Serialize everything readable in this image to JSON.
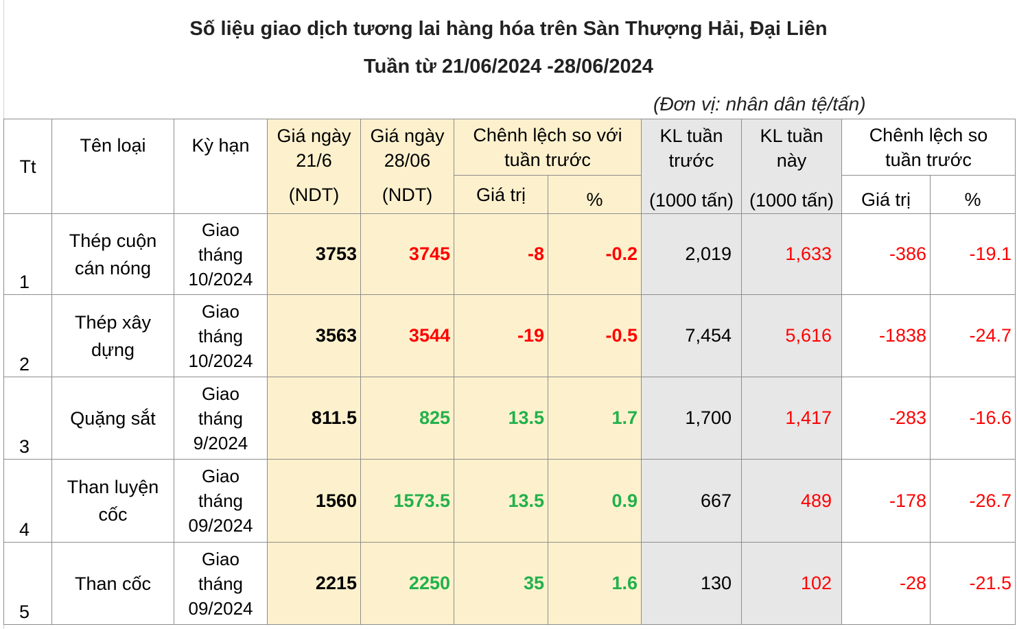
{
  "title": "Số liệu giao dịch tương lai hàng hóa trên Sàn Thượng Hải, Đại Liên",
  "subtitle": "Tuần từ 21/06/2024 -28/06/2024",
  "unit": "(Đơn vị: nhân dân tệ/tấn)",
  "headers": {
    "tt": "Tt",
    "ten_loai": "Tên loại",
    "ky_han": "Kỳ hạn",
    "gia_2106_line1": "Giá ngày",
    "gia_2106_line2": "21/6",
    "gia_2106_unit": "(NDT)",
    "gia_2806_line1": "Giá ngày",
    "gia_2806_line2": "28/06",
    "gia_2806_unit": "(NDT)",
    "chenh_lech_gia_line1": "Chênh lệch so với",
    "chenh_lech_gia_line2": "tuần trước",
    "gia_tri": "Giá trị",
    "pct": "%",
    "kl_truoc_line1": "KL tuần",
    "kl_truoc_line2": "trước",
    "kl_truoc_unit": "(1000 tấn)",
    "kl_nay_line1": "KL tuần",
    "kl_nay_line2": "này",
    "kl_nay_unit": "(1000 tấn)",
    "chenh_lech_kl_line1": "Chênh lệch so",
    "chenh_lech_kl_line2": "tuần trước",
    "gia_tri_2": "Giá trị",
    "pct_2": "%"
  },
  "rows": [
    {
      "tt": "1",
      "name_line1": "Thép cuộn",
      "name_line2": "cán nóng",
      "kyhan_line1": "Giao",
      "kyhan_line2": "tháng",
      "kyhan_line3": "10/2024",
      "gia_2106": "3753",
      "gia_2806": "3745",
      "chenh_gia": "-8",
      "chenh_pct": "-0.2",
      "kl_truoc": "2,019",
      "kl_nay": "1,633",
      "chenh_kl": "-386",
      "chenh_kl_pct": "-19.1"
    },
    {
      "tt": "2",
      "name_line1": "Thép xây",
      "name_line2": "dựng",
      "kyhan_line1": "Giao",
      "kyhan_line2": "tháng",
      "kyhan_line3": "10/2024",
      "gia_2106": "3563",
      "gia_2806": "3544",
      "chenh_gia": "-19",
      "chenh_pct": "-0.5",
      "kl_truoc": "7,454",
      "kl_nay": "5,616",
      "chenh_kl": "-1838",
      "chenh_kl_pct": "-24.7"
    },
    {
      "tt": "3",
      "name_line1": "Quặng sắt",
      "name_line2": "",
      "kyhan_line1": "Giao",
      "kyhan_line2": "tháng",
      "kyhan_line3": "9/2024",
      "gia_2106": "811.5",
      "gia_2806": "825",
      "chenh_gia": "13.5",
      "chenh_pct": "1.7",
      "kl_truoc": "1,700",
      "kl_nay": "1,417",
      "chenh_kl": "-283",
      "chenh_kl_pct": "-16.6"
    },
    {
      "tt": "4",
      "name_line1": "Than luyện",
      "name_line2": "cốc",
      "kyhan_line1": "Giao",
      "kyhan_line2": "tháng",
      "kyhan_line3": "09/2024",
      "gia_2106": "1560",
      "gia_2806": "1573.5",
      "chenh_gia": "13.5",
      "chenh_pct": "0.9",
      "kl_truoc": "667",
      "kl_nay": "489",
      "chenh_kl": "-178",
      "chenh_kl_pct": "-26.7"
    },
    {
      "tt": "5",
      "name_line1": "Than cốc",
      "name_line2": "",
      "kyhan_line1": "Giao",
      "kyhan_line2": "tháng",
      "kyhan_line3": "09/2024",
      "gia_2106": "2215",
      "gia_2806": "2250",
      "chenh_gia": "35",
      "chenh_pct": "1.6",
      "kl_truoc": "130",
      "kl_nay": "102",
      "chenh_kl": "-28",
      "chenh_kl_pct": "-21.5"
    }
  ],
  "colors": {
    "negative": "#ff0000",
    "positive": "#22b14c",
    "price_bg": "#fdf1cd",
    "volume_bg": "#e7e7e7"
  }
}
